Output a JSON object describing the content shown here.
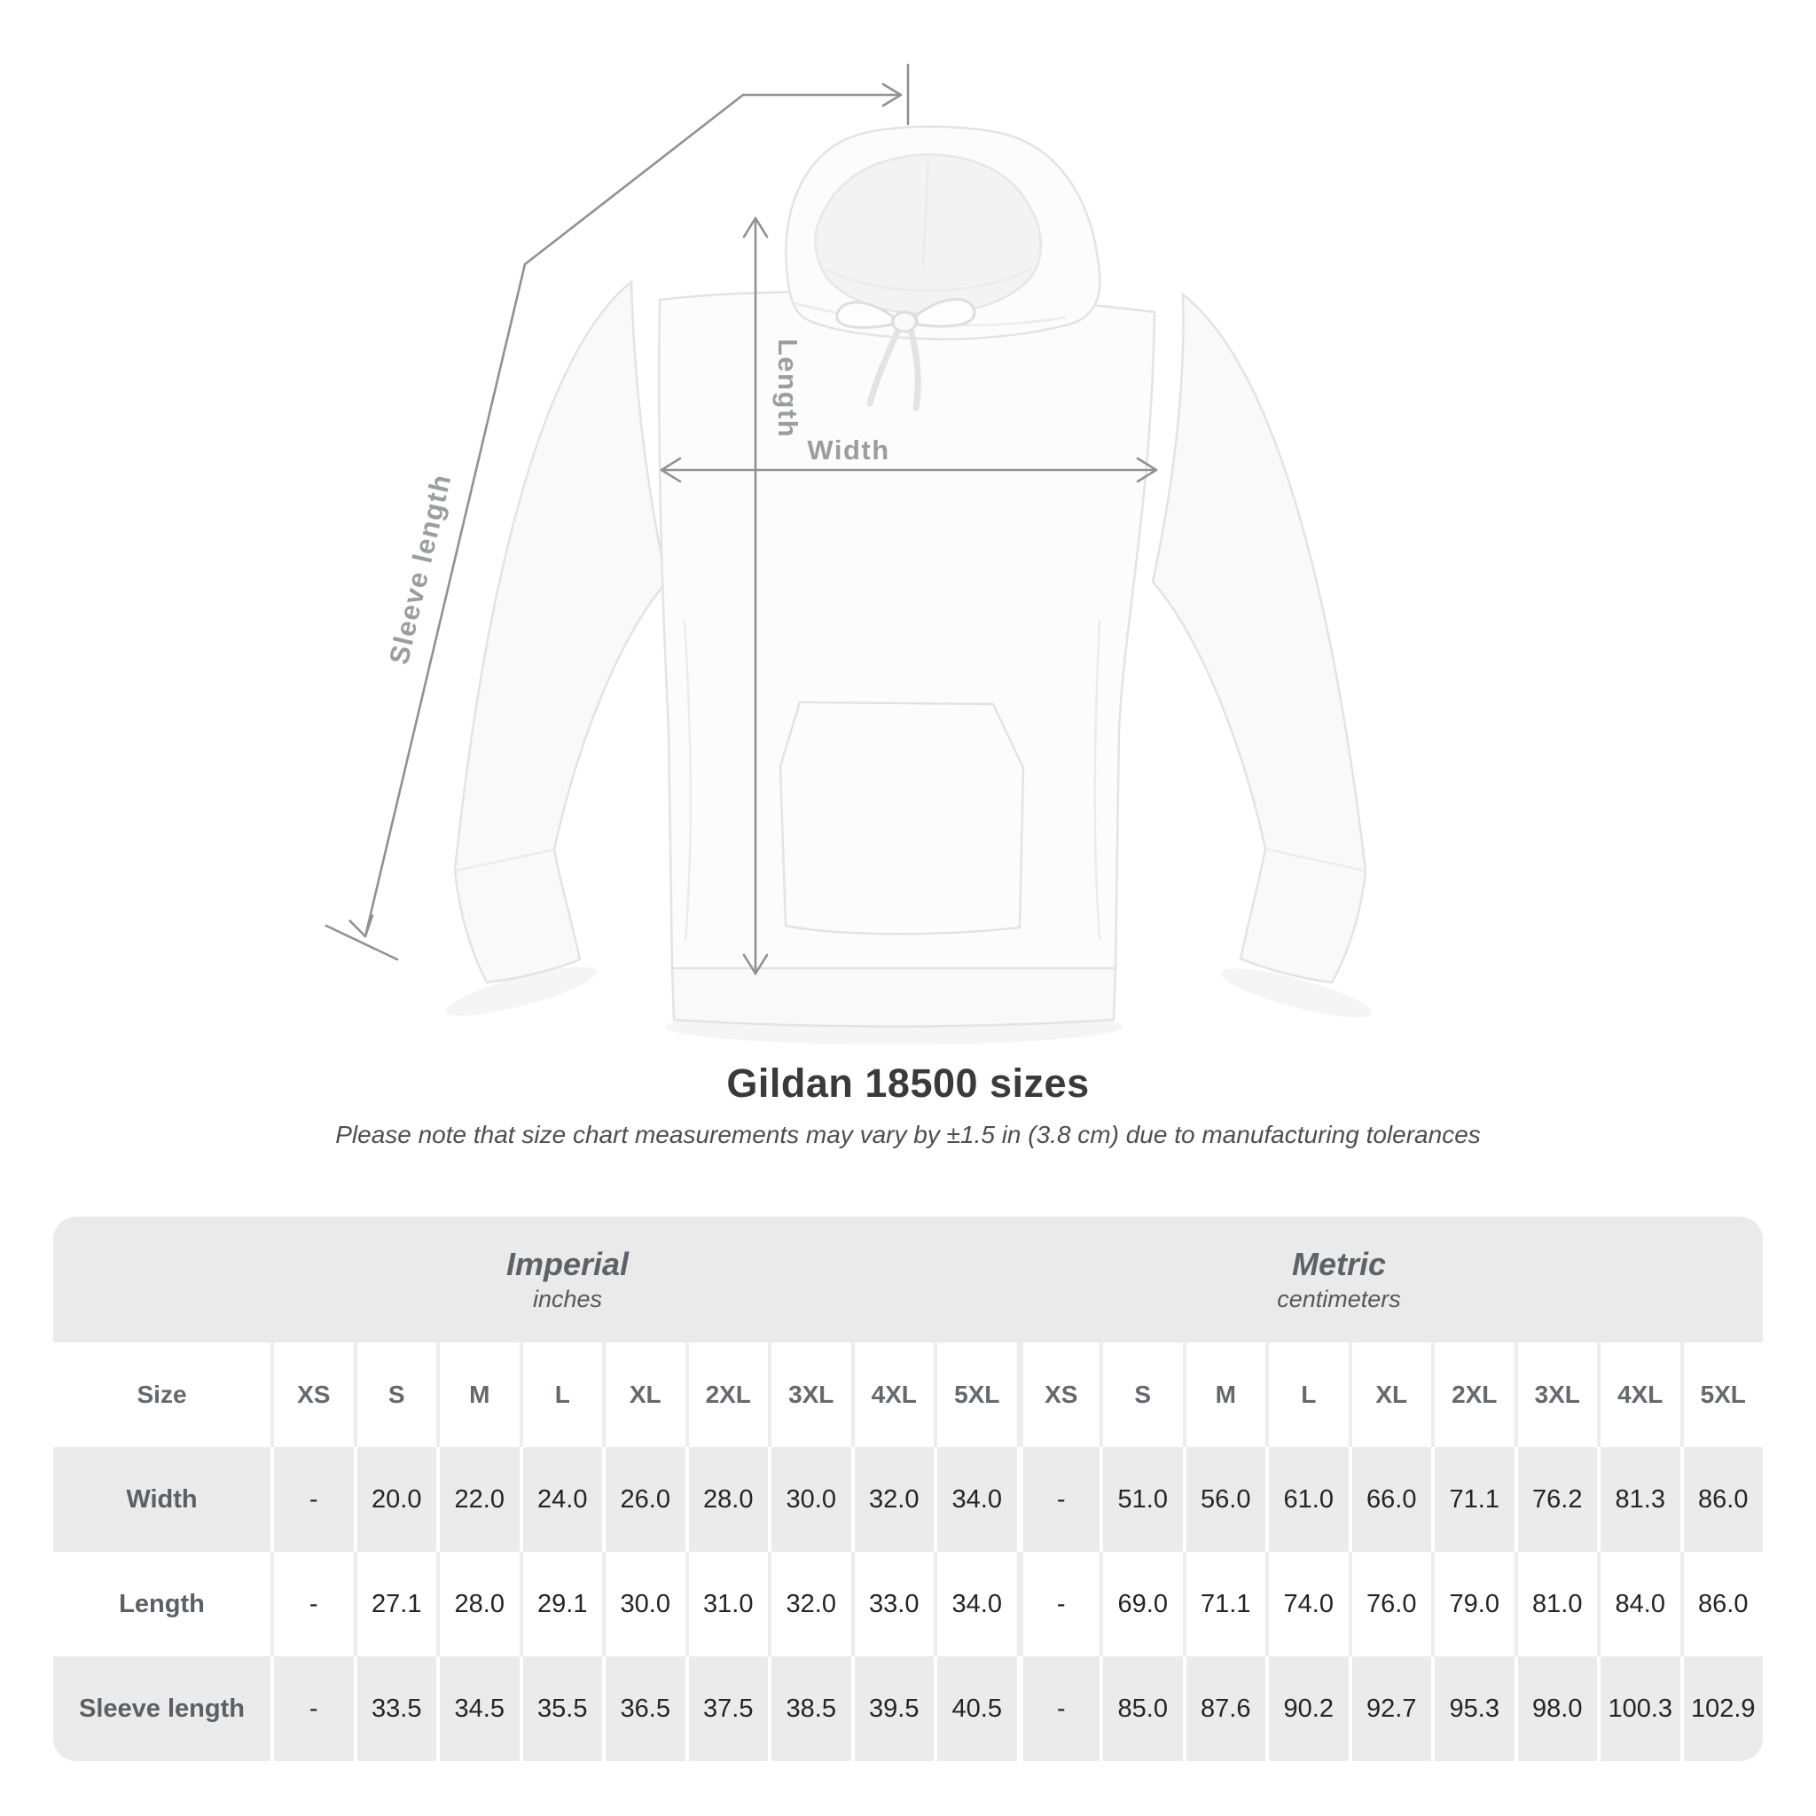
{
  "diagram": {
    "sleeve_length_label": "Sleeve length",
    "length_label": "Length",
    "width_label": "Width",
    "product": "white pullover hoodie with kangaroo pocket and drawstrings"
  },
  "chart_data": {
    "type": "table",
    "title": "Gildan 18500 sizes",
    "subtitle": "Please note that size chart measurements may vary by ±1.5 in (3.8 cm) due to manufacturing tolerances",
    "groups": [
      {
        "title": "Imperial",
        "subtitle": "inches"
      },
      {
        "title": "Metric",
        "subtitle": "centimeters"
      }
    ],
    "size_column_label": "Size",
    "size_headers": [
      "XS",
      "S",
      "M",
      "L",
      "XL",
      "2XL",
      "3XL",
      "4XL",
      "5XL",
      "XS",
      "S",
      "M",
      "L",
      "XL",
      "2XL",
      "3XL",
      "4XL",
      "5XL"
    ],
    "rows": [
      {
        "label": "Width",
        "values": [
          "-",
          "20.0",
          "22.0",
          "24.0",
          "26.0",
          "28.0",
          "30.0",
          "32.0",
          "34.0",
          "-",
          "51.0",
          "56.0",
          "61.0",
          "66.0",
          "71.1",
          "76.2",
          "81.3",
          "86.0"
        ]
      },
      {
        "label": "Length",
        "values": [
          "-",
          "27.1",
          "28.0",
          "29.1",
          "30.0",
          "31.0",
          "32.0",
          "33.0",
          "34.0",
          "-",
          "69.0",
          "71.1",
          "74.0",
          "76.0",
          "79.0",
          "81.0",
          "84.0",
          "86.0"
        ]
      },
      {
        "label": "Sleeve length",
        "values": [
          "-",
          "33.5",
          "34.5",
          "35.5",
          "36.5",
          "37.5",
          "38.5",
          "39.5",
          "40.5",
          "-",
          "85.0",
          "87.6",
          "90.2",
          "92.7",
          "95.3",
          "98.0",
          "100.3",
          "102.9"
        ]
      }
    ]
  },
  "colors": {
    "page_background": "#FFFFFF",
    "band_background": "#EAEAEA",
    "row_stripe": "#EBEBEB",
    "measurement_line": "#8F9193",
    "measurement_label": "#9B9DA0",
    "title_text": "#3A3A3A",
    "value_text": "#242424",
    "header_text": "#64696E"
  }
}
